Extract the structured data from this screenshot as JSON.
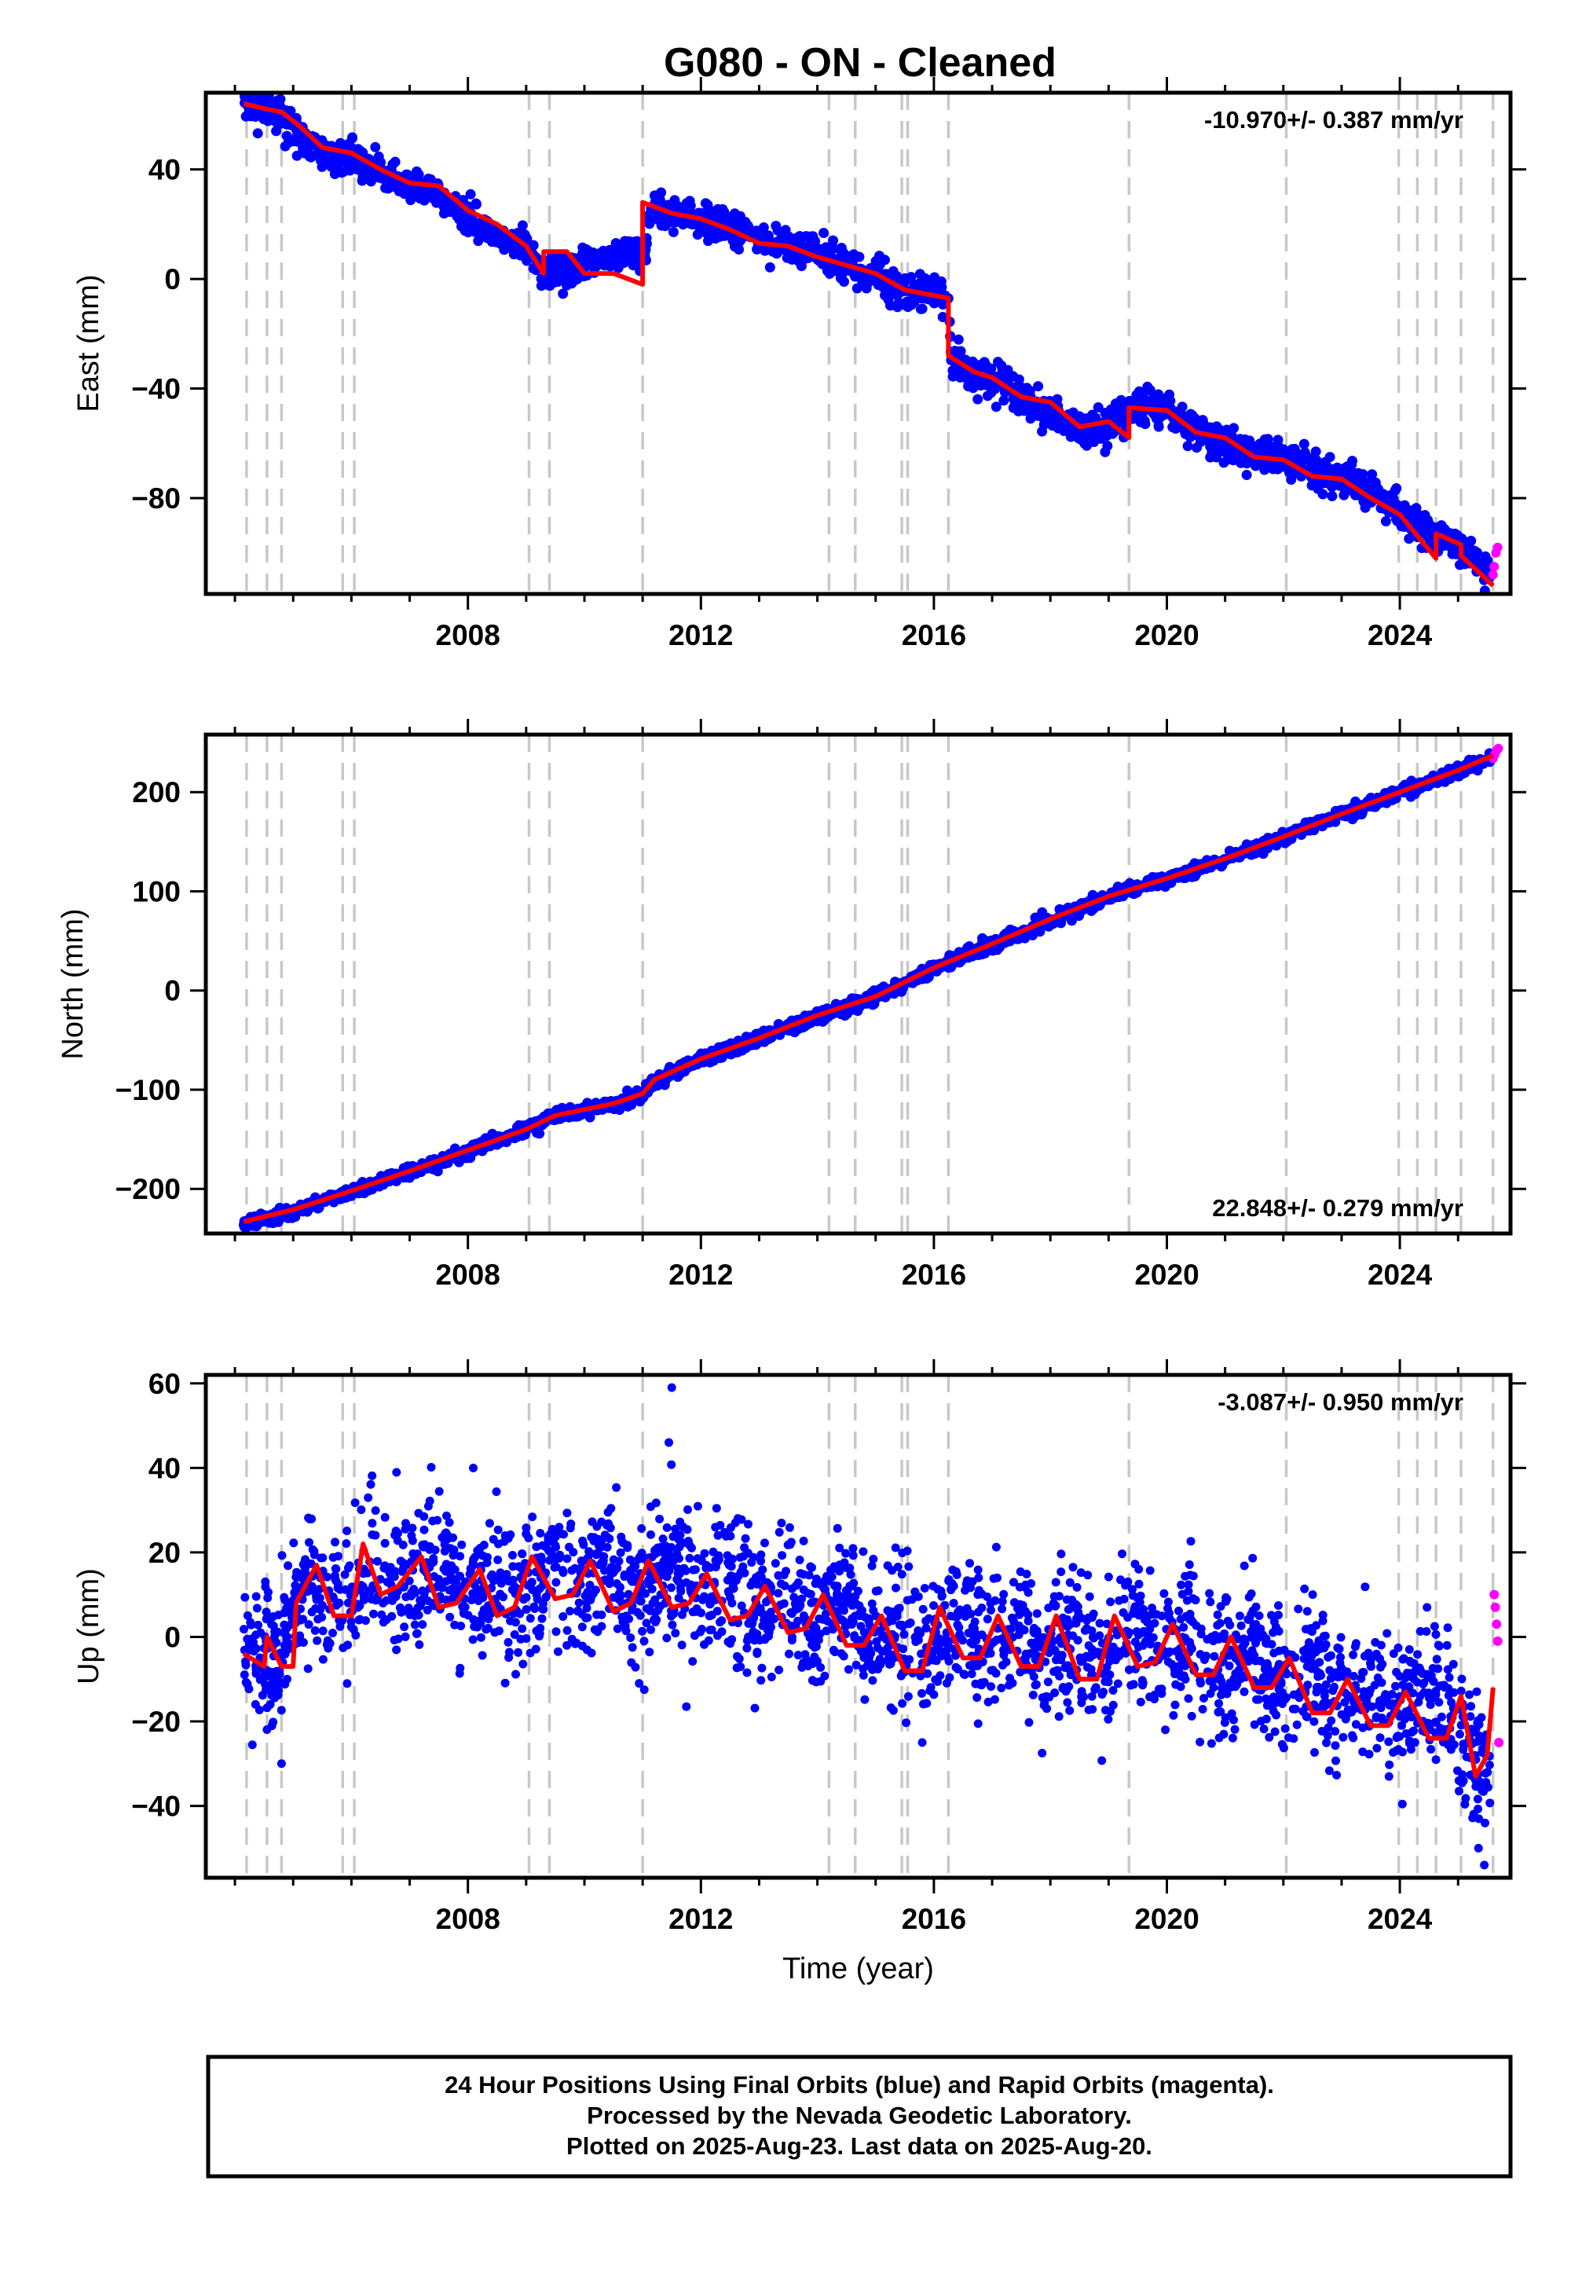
{
  "title": "G080  - ON - Cleaned",
  "colors": {
    "final_orbits": "#0000ff",
    "rapid_orbits": "#ff00ff",
    "model": "#ff0000",
    "steps": "#c8c8c8"
  },
  "footer": {
    "line1": "24 Hour Positions Using Final Orbits (blue) and Rapid Orbits (magenta).",
    "line2": "Processed by the Nevada Geodetic Laboratory.",
    "line3": "Plotted on 2025-Aug-23. Last data on 2025-Aug-20."
  },
  "chart_data": [
    {
      "type": "scatter",
      "ylabel": "East (mm)",
      "xlabel": "",
      "rate_label": "-10.970+/- 0.387 mm/yr",
      "rate_position": "top-right",
      "xlim": [
        2003.5,
        2025.9
      ],
      "ylim": [
        -115,
        68
      ],
      "x_ticks": [
        2008,
        2012,
        2016,
        2020,
        2024
      ],
      "y_ticks": [
        40,
        0,
        -40,
        -80
      ],
      "y_tick_labels": [
        "40",
        "0",
        "−40",
        "−80"
      ],
      "grid": false,
      "steps": [
        2004.2,
        2004.55,
        2004.8,
        2005.85,
        2006.05,
        2009.05,
        2009.4,
        2011.0,
        2014.2,
        2014.65,
        2015.45,
        2015.55,
        2016.25,
        2019.35,
        2022.05,
        2023.98,
        2024.3,
        2024.62,
        2025.05,
        2025.6
      ],
      "series": [
        {
          "role": "final",
          "x": [
            2004.15,
            2004.5,
            2004.8,
            2005.0,
            2005.3,
            2005.7,
            2006.0,
            2006.3,
            2006.7,
            2007.0,
            2007.5,
            2008.0,
            2008.5,
            2009.0,
            2009.3,
            2009.7,
            2010.0,
            2010.5,
            2011.0,
            2011.2,
            2011.6,
            2012.0,
            2012.5,
            2013.0,
            2013.5,
            2014.0,
            2014.5,
            2015.0,
            2015.5,
            2016.0,
            2016.25,
            2016.3,
            2016.7,
            2017.0,
            2017.5,
            2018.0,
            2018.5,
            2019.0,
            2019.35,
            2019.5,
            2020.0,
            2020.5,
            2021.0,
            2021.5,
            2022.0,
            2022.5,
            2023.0,
            2023.5,
            2024.0,
            2024.5,
            2025.0,
            2025.3,
            2025.55
          ],
          "y": [
            65,
            63,
            60,
            55,
            48,
            44,
            45,
            40,
            36,
            35,
            30,
            22,
            16,
            11,
            2,
            2,
            5,
            8,
            9,
            26,
            24,
            21,
            18,
            14,
            12,
            10,
            5,
            2,
            -6,
            -5,
            -8,
            -30,
            -35,
            -37,
            -44,
            -48,
            -55,
            -53,
            -48,
            -45,
            -48,
            -56,
            -60,
            -65,
            -65,
            -70,
            -72,
            -78,
            -86,
            -92,
            -97,
            -103,
            -110
          ]
        },
        {
          "role": "rapid",
          "x": [
            2025.6,
            2025.62,
            2025.65,
            2025.68
          ],
          "y": [
            -108,
            -105,
            -100,
            -98
          ]
        },
        {
          "role": "model",
          "x": [
            2004.15,
            2004.55,
            2004.8,
            2005.1,
            2005.5,
            2006.0,
            2006.5,
            2007.0,
            2007.5,
            2008.0,
            2008.5,
            2009.0,
            2009.3,
            2009.3,
            2009.7,
            2010.0,
            2010.5,
            2011.0,
            2011.0,
            2011.5,
            2012.0,
            2012.5,
            2013.0,
            2013.5,
            2014.0,
            2014.5,
            2015.0,
            2015.5,
            2016.0,
            2016.25,
            2016.25,
            2016.7,
            2017.0,
            2017.5,
            2018.0,
            2018.5,
            2019.0,
            2019.35,
            2019.35,
            2020.0,
            2020.5,
            2021.0,
            2021.5,
            2022.0,
            2022.5,
            2023.0,
            2023.5,
            2024.0,
            2024.62,
            2024.62,
            2025.05,
            2025.05,
            2025.6
          ],
          "y": [
            64,
            62,
            61,
            56,
            48,
            46,
            40,
            35,
            34,
            25,
            20,
            12,
            2,
            10,
            10,
            2,
            2,
            -2,
            28,
            24,
            22,
            18,
            13,
            12,
            8,
            5,
            2,
            -4,
            -6,
            -7,
            -28,
            -34,
            -36,
            -43,
            -45,
            -54,
            -52,
            -58,
            -47,
            -48,
            -56,
            -58,
            -65,
            -66,
            -72,
            -73,
            -80,
            -86,
            -102,
            -93,
            -97,
            -101,
            -112
          ]
        }
      ]
    },
    {
      "type": "scatter",
      "ylabel": "North (mm)",
      "xlabel": "",
      "rate_label": "22.848+/- 0.279 mm/yr",
      "rate_position": "bottom-right",
      "xlim": [
        2003.5,
        2025.9
      ],
      "ylim": [
        -245,
        258
      ],
      "x_ticks": [
        2008,
        2012,
        2016,
        2020,
        2024
      ],
      "y_ticks": [
        200,
        100,
        0,
        -100,
        -200
      ],
      "y_tick_labels": [
        "200",
        "100",
        "0",
        "−100",
        "−200"
      ],
      "grid": false,
      "steps": [
        2004.2,
        2004.55,
        2004.8,
        2005.85,
        2006.05,
        2009.05,
        2009.4,
        2011.0,
        2014.2,
        2014.65,
        2015.45,
        2015.55,
        2016.25,
        2019.35,
        2022.05,
        2023.98,
        2024.3,
        2024.62,
        2025.05,
        2025.6
      ],
      "series": [
        {
          "role": "final",
          "x": [
            2004.15,
            2005.0,
            2006.0,
            2007.0,
            2008.0,
            2009.0,
            2009.5,
            2010.5,
            2011.0,
            2011.2,
            2012.0,
            2013.0,
            2014.0,
            2015.0,
            2016.0,
            2017.0,
            2018.0,
            2019.0,
            2020.0,
            2021.0,
            2022.0,
            2023.0,
            2024.0,
            2025.0,
            2025.55
          ],
          "y": [
            -235,
            -223,
            -203,
            -183,
            -162,
            -140,
            -127,
            -115,
            -106,
            -92,
            -70,
            -49,
            -26,
            -7,
            22,
            46,
            71,
            94,
            112,
            132,
            155,
            178,
            199,
            222,
            233
          ]
        },
        {
          "role": "rapid",
          "x": [
            2025.6,
            2025.63,
            2025.66,
            2025.69
          ],
          "y": [
            234,
            238,
            242,
            244
          ]
        },
        {
          "role": "model",
          "x": [
            2004.15,
            2005.0,
            2006.0,
            2007.0,
            2008.0,
            2009.0,
            2009.5,
            2010.5,
            2011.0,
            2011.2,
            2012.0,
            2013.0,
            2014.0,
            2015.0,
            2016.0,
            2017.0,
            2018.0,
            2019.0,
            2020.0,
            2021.0,
            2022.0,
            2023.0,
            2024.0,
            2025.0,
            2025.6
          ],
          "y": [
            -233,
            -221,
            -202,
            -182,
            -161,
            -140,
            -126,
            -114,
            -104,
            -90,
            -69,
            -48,
            -25,
            -6,
            23,
            47,
            72,
            95,
            113,
            133,
            155,
            178,
            200,
            222,
            237
          ]
        }
      ]
    },
    {
      "type": "scatter",
      "ylabel": "Up (mm)",
      "xlabel": "Time (year)",
      "rate_label": "-3.087+/- 0.950 mm/yr",
      "rate_position": "top-right",
      "xlim": [
        2003.5,
        2025.9
      ],
      "ylim": [
        -57,
        62
      ],
      "x_ticks": [
        2008,
        2012,
        2016,
        2020,
        2024
      ],
      "y_ticks": [
        60,
        40,
        20,
        0,
        -20,
        -40
      ],
      "y_tick_labels": [
        "60",
        "40",
        "20",
        "0",
        "−20",
        "−40"
      ],
      "grid": false,
      "steps": [
        2004.2,
        2004.55,
        2004.8,
        2005.85,
        2006.05,
        2009.05,
        2009.4,
        2011.0,
        2014.2,
        2014.65,
        2015.45,
        2015.55,
        2016.25,
        2019.35,
        2022.05,
        2023.98,
        2024.3,
        2024.62,
        2025.05,
        2025.6
      ],
      "series": [
        {
          "role": "final",
          "scatter_band": 8,
          "x": [
            2004.15,
            2004.5,
            2004.8,
            2005.0,
            2005.3,
            2005.6,
            2005.9,
            2006.4,
            2006.8,
            2007.4,
            2007.9,
            2008.4,
            2008.9,
            2009.4,
            2009.9,
            2010.4,
            2010.9,
            2011.4,
            2011.9,
            2012.4,
            2012.9,
            2013.4,
            2013.9,
            2014.4,
            2014.9,
            2015.4,
            2015.9,
            2016.4,
            2016.9,
            2017.4,
            2017.9,
            2018.4,
            2018.9,
            2019.4,
            2019.9,
            2020.4,
            2020.9,
            2021.4,
            2021.9,
            2022.4,
            2022.9,
            2023.4,
            2023.9,
            2024.4,
            2024.9,
            2025.2,
            2025.55
          ],
          "y": [
            -4,
            -6,
            -5,
            7,
            14,
            8,
            8,
            20,
            12,
            18,
            9,
            15,
            8,
            18,
            11,
            18,
            9,
            17,
            8,
            14,
            4,
            10,
            2,
            9,
            -2,
            4,
            -5,
            6,
            -4,
            4,
            -6,
            3,
            -8,
            4,
            -6,
            2,
            -8,
            -2,
            -12,
            -5,
            -16,
            -10,
            -18,
            -12,
            -20,
            -28,
            -30
          ]
        },
        {
          "role": "rapid",
          "x": [
            2025.62,
            2025.64,
            2025.66,
            2025.68,
            2025.7
          ],
          "y": [
            10,
            7,
            3,
            -1,
            -25
          ]
        },
        {
          "role": "model",
          "x": [
            2004.15,
            2004.5,
            2004.55,
            2004.8,
            2005.0,
            2005.05,
            2005.4,
            2005.7,
            2006.0,
            2006.2,
            2006.5,
            2006.8,
            2007.2,
            2007.5,
            2007.8,
            2008.2,
            2008.5,
            2008.8,
            2009.1,
            2009.5,
            2009.8,
            2010.1,
            2010.5,
            2010.8,
            2011.1,
            2011.5,
            2011.8,
            2012.1,
            2012.5,
            2012.8,
            2013.1,
            2013.5,
            2013.8,
            2014.1,
            2014.5,
            2014.8,
            2015.1,
            2015.5,
            2015.8,
            2016.1,
            2016.5,
            2016.8,
            2017.1,
            2017.5,
            2017.8,
            2018.1,
            2018.5,
            2018.8,
            2019.1,
            2019.5,
            2019.8,
            2020.1,
            2020.5,
            2020.8,
            2021.1,
            2021.5,
            2021.8,
            2022.1,
            2022.5,
            2022.8,
            2023.1,
            2023.5,
            2023.8,
            2024.1,
            2024.5,
            2024.8,
            2025.05,
            2025.3,
            2025.5,
            2025.6
          ],
          "y": [
            -4,
            -7,
            0,
            -7,
            -7,
            8,
            17,
            5,
            5,
            22,
            10,
            12,
            19,
            7,
            8,
            16,
            5,
            7,
            19,
            9,
            10,
            18,
            6,
            8,
            18,
            7,
            8,
            15,
            4,
            5,
            12,
            1,
            2,
            10,
            -2,
            -2,
            5,
            -8,
            -8,
            7,
            -5,
            -5,
            5,
            -7,
            -7,
            5,
            -10,
            -10,
            5,
            -7,
            -6,
            3,
            -9,
            -9,
            0,
            -12,
            -12,
            -5,
            -18,
            -18,
            -10,
            -21,
            -21,
            -13,
            -24,
            -24,
            -14,
            -33,
            -28,
            -12
          ]
        }
      ]
    }
  ]
}
